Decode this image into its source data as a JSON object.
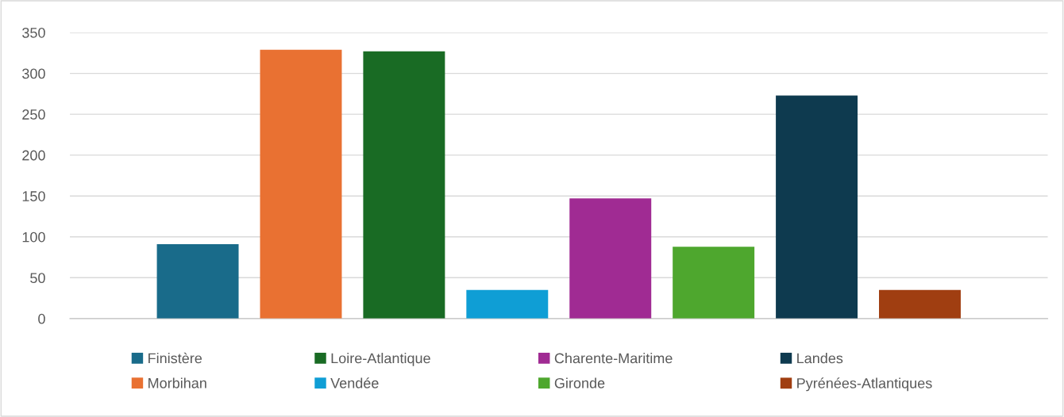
{
  "chart_data": {
    "type": "bar",
    "categories": [
      null
    ],
    "series": [
      {
        "name": "Finistère",
        "color": "#196b8a",
        "values": [
          91
        ]
      },
      {
        "name": "Morbihan",
        "color": "#e97132",
        "values": [
          329
        ]
      },
      {
        "name": "Loire-Atlantique",
        "color": "#196b24",
        "values": [
          327
        ]
      },
      {
        "name": "Vendée",
        "color": "#0f9ed5",
        "values": [
          35
        ]
      },
      {
        "name": "Charente-Maritime",
        "color": "#a02b93",
        "values": [
          147
        ]
      },
      {
        "name": "Gironde",
        "color": "#4ea72e",
        "values": [
          88
        ]
      },
      {
        "name": "Landes",
        "color": "#0e3a4f",
        "values": [
          273
        ]
      },
      {
        "name": "Pyrénées-Atlantiques",
        "color": "#a03e11",
        "values": [
          35
        ]
      }
    ],
    "ylim": [
      0,
      350
    ],
    "yticks": [
      0,
      50,
      100,
      150,
      200,
      250,
      300,
      350
    ],
    "grid": "y",
    "legend": "bottom"
  }
}
